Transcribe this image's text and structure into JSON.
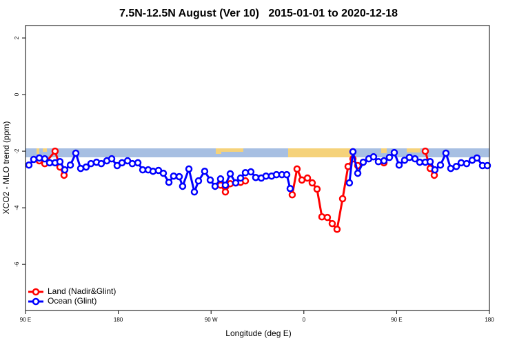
{
  "chart_data": {
    "type": "line",
    "title": "7.5N-12.5N August (Ver 10)   2015-01-01 to 2020-12-18",
    "x_label": "Longitude (deg E)",
    "y_label": "XCO2 - MLO trend (ppm)",
    "xlim": [
      90,
      540
    ],
    "xticks": [
      {
        "value": 90,
        "label": "90 E"
      },
      180,
      {
        "value": 270,
        "label": "90 W"
      },
      {
        "value": 360,
        "label": "0"
      },
      {
        "value": 450,
        "label": "90 E"
      },
      {
        "value": 540,
        "label": "180"
      }
    ],
    "ylim": [
      -7.63,
      2.44
    ],
    "yticks": [
      2,
      0,
      -2,
      -4,
      -6
    ],
    "legend": "bottom-left",
    "series": [
      {
        "name": "Land (Nadir&Glint)",
        "color": "#ff0000",
        "x": [
          103.4,
          108.7,
          118.7,
          123.4,
          127.4,
          null,
          279.2,
          283.9,
          288.6,
          293.9,
          298.6,
          303.3,
          null,
          348.7,
          353.4,
          358.1,
          363.5,
          368.1,
          372.8,
          377.5,
          382.8,
          387.5,
          392.2,
          397.6,
          402.9,
          407.6,
          412.3,
          null,
          437.7,
          null,
          477.8,
          482.5,
          486.5
        ],
        "values": [
          -2.34,
          -2.44,
          -2.0,
          -2.56,
          -2.85,
          null,
          -3.2,
          -3.44,
          -3.15,
          -3.12,
          -3.1,
          -3.05,
          null,
          -3.54,
          -2.63,
          -3.02,
          -2.95,
          -3.12,
          -3.34,
          -4.32,
          -4.34,
          -4.56,
          -4.76,
          -3.68,
          -2.54,
          -2.27,
          -2.51,
          null,
          -2.41,
          null,
          -2.0,
          -2.61,
          -2.85
        ]
      },
      {
        "name": "Ocean (Glint)",
        "color": "#0000ff",
        "x": [
          93.3,
          98.0,
          103.4,
          108.7,
          113.4,
          118.7,
          123.4,
          128.1,
          133.5,
          138.8,
          143.5,
          148.8,
          153.5,
          158.9,
          163.5,
          168.9,
          173.6,
          178.9,
          183.6,
          189.0,
          193.6,
          199.0,
          203.7,
          209.0,
          213.7,
          219.0,
          223.7,
          229.1,
          233.7,
          239.1,
          242.4,
          248.5,
          253.8,
          257.8,
          263.8,
          269.2,
          273.9,
          279.2,
          283.9,
          288.6,
          293.9,
          298.6,
          303.3,
          308.6,
          313.3,
          318.7,
          323.3,
          328.7,
          333.4,
          338.7,
          343.4,
          346.7,
          null,
          404.2,
          407.6,
          412.3,
          417.6,
          423.0,
          427.6,
          432.3,
          437.7,
          443.0,
          447.7,
          452.4,
          457.7,
          462.4,
          467.8,
          472.4,
          477.8,
          482.5,
          487.1,
          492.5,
          497.8,
          502.5,
          507.9,
          512.6,
          517.9,
          523.3,
          527.9,
          533.3,
          538.0
        ],
        "values": [
          -2.49,
          -2.29,
          -2.24,
          -2.27,
          -2.41,
          -2.41,
          -2.37,
          -2.66,
          -2.49,
          -2.07,
          -2.61,
          -2.56,
          -2.44,
          -2.39,
          -2.44,
          -2.34,
          -2.27,
          -2.51,
          -2.41,
          -2.34,
          -2.44,
          -2.41,
          -2.66,
          -2.66,
          -2.71,
          -2.68,
          -2.78,
          -3.1,
          -2.88,
          -2.9,
          -3.24,
          -2.63,
          -3.44,
          -3.05,
          -2.71,
          -3.02,
          -3.24,
          -2.98,
          -3.2,
          -2.8,
          -3.12,
          -2.95,
          -2.76,
          -2.73,
          -2.93,
          -2.95,
          -2.88,
          -2.88,
          -2.83,
          -2.83,
          -2.83,
          -3.32,
          null,
          -3.12,
          -2.02,
          -2.78,
          -2.39,
          -2.27,
          -2.2,
          -2.37,
          -2.34,
          -2.22,
          -2.05,
          -2.49,
          -2.32,
          -2.22,
          -2.27,
          -2.39,
          -2.39,
          -2.37,
          -2.66,
          -2.49,
          -2.07,
          -2.61,
          -2.54,
          -2.41,
          -2.44,
          -2.32,
          -2.24,
          -2.51,
          -2.51
        ]
      }
    ]
  }
}
